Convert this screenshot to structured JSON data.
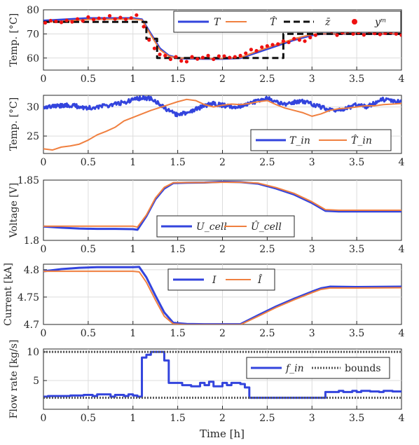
{
  "colors": {
    "blue": "#3344dd",
    "orange": "#f08040",
    "black": "#111111",
    "red": "#ee1111",
    "grid": "#dcdcdc",
    "dotted": "#555555"
  },
  "figure": {
    "xlabel": "Time [h]"
  },
  "chart_data": [
    {
      "type": "line",
      "ylabel": "Temp. [°C]",
      "xlim": [
        0,
        4
      ],
      "ylim": [
        55,
        80
      ],
      "yticks": [
        60,
        70,
        80
      ],
      "ytick_labels": [
        "60",
        "70",
        "80"
      ],
      "xticks": [
        0,
        0.5,
        1,
        1.5,
        2,
        2.5,
        3,
        3.5,
        4
      ],
      "xtick_labels": [
        "0",
        "0.5",
        "1",
        "1.5",
        "2",
        "2.5",
        "3",
        "3.5",
        "4"
      ],
      "legend": {
        "position": "top-right",
        "labels": [
          "T",
          "T̂",
          "z̄",
          "yᵐ"
        ]
      },
      "series": [
        {
          "name": "T",
          "style": "line",
          "color": "#3344dd",
          "x": [
            0,
            0.5,
            1.0,
            1.1,
            1.2,
            1.3,
            1.4,
            1.5,
            1.6,
            1.8,
            2.0,
            2.2,
            2.4,
            2.6,
            2.8,
            3.0,
            3.1,
            3.2,
            3.5,
            4.0
          ],
          "y": [
            75.5,
            76.5,
            76.5,
            76.0,
            70.0,
            64.0,
            61.0,
            60.0,
            59.8,
            59.7,
            59.7,
            60.0,
            62.5,
            65.0,
            67.5,
            69.5,
            70.0,
            70.0,
            70.0,
            70.0
          ]
        },
        {
          "name": "T̂",
          "style": "line",
          "color": "#f08040",
          "x": [
            0,
            0.5,
            1.0,
            1.1,
            1.2,
            1.3,
            1.4,
            1.5,
            1.6,
            1.8,
            2.0,
            2.2,
            2.4,
            2.6,
            2.8,
            3.0,
            3.1,
            3.2,
            3.5,
            4.0
          ],
          "y": [
            74.8,
            76.0,
            76.2,
            75.8,
            69.5,
            63.5,
            60.8,
            60.0,
            59.9,
            59.8,
            59.8,
            60.2,
            63.0,
            65.5,
            68.0,
            69.8,
            70.0,
            70.0,
            70.0,
            70.0
          ]
        },
        {
          "name": "z̄",
          "style": "dashed",
          "color": "#111111",
          "x": [
            0,
            1.15,
            1.15,
            1.27,
            1.27,
            2.68,
            2.68,
            4.0
          ],
          "y": [
            75,
            75,
            68,
            68,
            60,
            60,
            70,
            70
          ]
        },
        {
          "name": "yᵐ",
          "style": "markers",
          "color": "#ee1111",
          "x": [
            0.02,
            0.08,
            0.14,
            0.2,
            0.26,
            0.32,
            0.38,
            0.44,
            0.5,
            0.56,
            0.62,
            0.68,
            0.74,
            0.8,
            0.86,
            0.92,
            0.98,
            1.04,
            1.12,
            1.18,
            1.24,
            1.3,
            1.36,
            1.42,
            1.48,
            1.54,
            1.6,
            1.66,
            1.72,
            1.78,
            1.84,
            1.9,
            1.96,
            2.02,
            2.08,
            2.14,
            2.2,
            2.26,
            2.32,
            2.38,
            2.44,
            2.5,
            2.56,
            2.62,
            2.68,
            2.74,
            2.8,
            2.86,
            2.92,
            2.98,
            3.04,
            3.1,
            3.16,
            3.22,
            3.28,
            3.34,
            3.4,
            3.46,
            3.52,
            3.58,
            3.64,
            3.7,
            3.76,
            3.82,
            3.88,
            3.94,
            4.0
          ],
          "y": [
            74.6,
            75.5,
            75.2,
            74.8,
            75.6,
            75.0,
            76.2,
            75.4,
            77.0,
            76.0,
            76.5,
            76.3,
            77.5,
            76.2,
            76.8,
            76.1,
            76.6,
            77.8,
            73.0,
            67.5,
            64.0,
            61.5,
            61.0,
            59.5,
            60.5,
            58.8,
            58.5,
            60.5,
            59.6,
            60.2,
            61.0,
            59.5,
            60.8,
            60.8,
            60.2,
            60.5,
            61.0,
            62.0,
            63.5,
            63.0,
            64.5,
            65.0,
            65.5,
            65.8,
            67.0,
            66.5,
            68.0,
            67.5,
            67.0,
            68.5,
            69.5,
            71.5,
            72.0,
            71.0,
            69.5,
            70.5,
            71.0,
            70.0,
            70.5,
            69.6,
            71.0,
            70.2,
            69.8,
            70.3,
            70.6,
            70.0,
            69.5
          ]
        }
      ]
    },
    {
      "type": "line",
      "ylabel": "Temp. [°C]",
      "xlim": [
        0,
        4
      ],
      "ylim": [
        22,
        32
      ],
      "yticks": [
        25,
        30
      ],
      "ytick_labels": [
        "25",
        "30"
      ],
      "xticks": [
        0,
        0.5,
        1,
        1.5,
        2,
        2.5,
        3,
        3.5,
        4
      ],
      "xtick_labels": [
        "0",
        "0.5",
        "1",
        "1.5",
        "2",
        "2.5",
        "3",
        "3.5",
        "4"
      ],
      "legend": {
        "position": "bottom-right",
        "labels": [
          "T_in",
          "T̂_in"
        ]
      },
      "series": [
        {
          "name": "T_in",
          "style": "noisy",
          "color": "#3344dd",
          "noise": 0.35,
          "x": [
            0,
            0.3,
            0.5,
            0.7,
            0.9,
            1.0,
            1.1,
            1.2,
            1.3,
            1.4,
            1.5,
            1.6,
            1.7,
            1.8,
            1.9,
            2.0,
            2.1,
            2.2,
            2.3,
            2.4,
            2.5,
            2.6,
            2.7,
            2.8,
            2.9,
            3.0,
            3.1,
            3.2,
            3.3,
            3.4,
            3.5,
            3.6,
            3.7,
            3.8,
            3.9,
            4.0
          ],
          "y": [
            30.0,
            30.3,
            29.8,
            30.2,
            30.8,
            31.2,
            31.6,
            31.4,
            30.5,
            29.3,
            28.6,
            29.0,
            29.6,
            30.2,
            30.6,
            30.3,
            30.0,
            30.2,
            30.6,
            31.0,
            31.5,
            30.8,
            30.4,
            30.8,
            31.0,
            30.5,
            30.0,
            29.6,
            29.4,
            29.8,
            30.4,
            30.0,
            30.6,
            31.3,
            31.0,
            30.8
          ]
        },
        {
          "name": "T̂_in",
          "style": "line",
          "color": "#f08040",
          "x": [
            0,
            0.1,
            0.2,
            0.3,
            0.4,
            0.5,
            0.6,
            0.7,
            0.8,
            0.9,
            1.0,
            1.1,
            1.2,
            1.3,
            1.4,
            1.5,
            1.6,
            1.7,
            1.8,
            1.9,
            2.0,
            2.1,
            2.2,
            2.3,
            2.4,
            2.5,
            2.6,
            2.7,
            2.8,
            2.9,
            3.0,
            3.1,
            3.2,
            3.3,
            3.4,
            3.5,
            3.6,
            3.7,
            3.8,
            3.9,
            4.0
          ],
          "y": [
            22.8,
            22.6,
            23.1,
            23.3,
            23.6,
            24.3,
            25.2,
            25.8,
            26.5,
            27.6,
            28.2,
            28.8,
            29.4,
            29.9,
            30.4,
            30.9,
            31.3,
            31.1,
            30.4,
            30.0,
            30.3,
            30.5,
            30.4,
            30.6,
            30.9,
            31.1,
            30.4,
            29.8,
            29.4,
            29.0,
            28.4,
            28.8,
            29.4,
            29.7,
            29.8,
            30.0,
            30.2,
            30.2,
            30.4,
            30.5,
            30.6
          ]
        }
      ]
    },
    {
      "type": "line",
      "ylabel": "Voltage [V]",
      "xlim": [
        0,
        4
      ],
      "ylim": [
        1.8,
        1.85
      ],
      "yticks": [
        1.8,
        1.85
      ],
      "ytick_labels": [
        "1.8",
        "1.85"
      ],
      "xticks": [
        0,
        0.5,
        1,
        1.5,
        2,
        2.5,
        3,
        3.5,
        4
      ],
      "xtick_labels": [
        "0",
        "0.5",
        "1",
        "1.5",
        "2",
        "2.5",
        "3",
        "3.5",
        "4"
      ],
      "legend": {
        "position": "bottom-center",
        "labels": [
          "U_cell",
          "Û_cell"
        ]
      },
      "series": [
        {
          "name": "U_cell",
          "style": "line",
          "color": "#3344dd",
          "x": [
            0,
            0.2,
            0.4,
            0.6,
            0.8,
            1.0,
            1.05,
            1.15,
            1.25,
            1.35,
            1.45,
            1.6,
            1.8,
            2.0,
            2.2,
            2.4,
            2.6,
            2.8,
            3.0,
            3.15,
            3.3,
            3.6,
            4.0
          ],
          "y": [
            1.8115,
            1.8105,
            1.8098,
            1.8095,
            1.8095,
            1.8093,
            1.8088,
            1.82,
            1.834,
            1.843,
            1.8475,
            1.8478,
            1.848,
            1.8486,
            1.8483,
            1.847,
            1.843,
            1.838,
            1.831,
            1.8245,
            1.824,
            1.824,
            1.824
          ]
        },
        {
          "name": "Û_cell",
          "style": "line",
          "color": "#f08040",
          "x": [
            0,
            0.2,
            0.4,
            0.6,
            0.8,
            1.0,
            1.05,
            1.15,
            1.25,
            1.35,
            1.45,
            1.6,
            1.8,
            2.0,
            2.2,
            2.4,
            2.6,
            2.8,
            3.0,
            3.15,
            3.3,
            3.6,
            4.0
          ],
          "y": [
            1.8118,
            1.8118,
            1.8118,
            1.8118,
            1.8118,
            1.8118,
            1.811,
            1.821,
            1.835,
            1.844,
            1.8478,
            1.848,
            1.848,
            1.8482,
            1.8482,
            1.8475,
            1.8438,
            1.839,
            1.832,
            1.8255,
            1.825,
            1.825,
            1.825
          ]
        }
      ]
    },
    {
      "type": "line",
      "ylabel": "Current [kA]",
      "xlim": [
        0,
        4
      ],
      "ylim": [
        4.7,
        4.81
      ],
      "yticks": [
        4.7,
        4.75,
        4.8
      ],
      "ytick_labels": [
        "4.7",
        "4.75",
        "4.8"
      ],
      "xticks": [
        0,
        0.5,
        1,
        1.5,
        2,
        2.5,
        3,
        3.5,
        4
      ],
      "xtick_labels": [
        "0",
        "0.5",
        "1",
        "1.5",
        "2",
        "2.5",
        "3",
        "3.5",
        "4"
      ],
      "legend": {
        "position": "top-center",
        "labels": [
          "I",
          "Î"
        ]
      },
      "series": [
        {
          "name": "I",
          "style": "line",
          "color": "#3344dd",
          "x": [
            0,
            0.2,
            0.4,
            0.6,
            0.8,
            1.0,
            1.07,
            1.15,
            1.25,
            1.35,
            1.45,
            1.6,
            1.8,
            2.0,
            2.2,
            2.4,
            2.6,
            2.8,
            3.0,
            3.1,
            3.2,
            3.5,
            4.0
          ],
          "y": [
            4.797,
            4.801,
            4.8035,
            4.8045,
            4.8045,
            4.8045,
            4.805,
            4.786,
            4.753,
            4.722,
            4.703,
            4.701,
            4.7005,
            4.7005,
            4.7005,
            4.717,
            4.733,
            4.747,
            4.76,
            4.766,
            4.769,
            4.7685,
            4.769
          ]
        },
        {
          "name": "Î",
          "style": "line",
          "color": "#f08040",
          "x": [
            0,
            0.2,
            0.4,
            0.6,
            0.8,
            1.0,
            1.07,
            1.15,
            1.25,
            1.35,
            1.45,
            1.6,
            1.8,
            2.0,
            2.2,
            2.4,
            2.6,
            2.8,
            3.0,
            3.1,
            3.2,
            3.5,
            4.0
          ],
          "y": [
            4.797,
            4.797,
            4.797,
            4.797,
            4.797,
            4.797,
            4.796,
            4.777,
            4.745,
            4.715,
            4.701,
            4.6995,
            4.6995,
            4.6995,
            4.6995,
            4.715,
            4.731,
            4.745,
            4.758,
            4.764,
            4.7665,
            4.7665,
            4.767
          ]
        }
      ]
    },
    {
      "type": "line",
      "ylabel": "Flow rate [kg/s]",
      "xlim": [
        0,
        4
      ],
      "ylim": [
        0,
        10.5
      ],
      "yticks": [
        5,
        10
      ],
      "ytick_labels": [
        "5",
        "10"
      ],
      "xticks": [
        0,
        0.5,
        1,
        1.5,
        2,
        2.5,
        3,
        3.5,
        4
      ],
      "xtick_labels": [
        "0",
        "0.5",
        "1",
        "1.5",
        "2",
        "2.5",
        "3",
        "3.5",
        "4"
      ],
      "legend": {
        "position": "top-right",
        "labels": [
          "f_in",
          "bounds"
        ]
      },
      "series": [
        {
          "name": "f_in",
          "style": "step",
          "color": "#3344dd",
          "x": [
            0,
            0.05,
            0.3,
            0.45,
            0.55,
            0.6,
            0.75,
            0.8,
            0.9,
            0.95,
            1.0,
            1.05,
            1.1,
            1.15,
            1.2,
            1.35,
            1.4,
            1.45,
            1.55,
            1.65,
            1.75,
            1.8,
            1.85,
            1.9,
            2.0,
            2.05,
            2.1,
            2.2,
            2.25,
            2.3,
            3.1,
            3.15,
            3.3,
            3.35,
            3.45,
            3.5,
            3.55,
            3.65,
            3.75,
            3.8,
            3.9,
            4.0
          ],
          "y": [
            2.2,
            2.3,
            2.4,
            2.5,
            2.3,
            2.6,
            2.2,
            2.5,
            2.3,
            2.6,
            2.4,
            2.2,
            9.0,
            9.5,
            10.0,
            8.5,
            4.6,
            4.6,
            4.2,
            4.0,
            4.6,
            4.2,
            4.8,
            4.0,
            4.6,
            4.2,
            4.6,
            4.4,
            3.8,
            2.0,
            2.0,
            3.0,
            3.2,
            3.0,
            3.2,
            3.0,
            3.2,
            3.1,
            3.0,
            3.2,
            3.1,
            3.1
          ]
        },
        {
          "name": "bounds",
          "style": "dotted",
          "color": "#555555",
          "x": [
            0,
            4
          ],
          "y": [
            2,
            2
          ]
        },
        {
          "name": "bounds",
          "style": "dotted",
          "color": "#555555",
          "x": [
            0,
            4
          ],
          "y": [
            10,
            10
          ]
        }
      ]
    }
  ]
}
